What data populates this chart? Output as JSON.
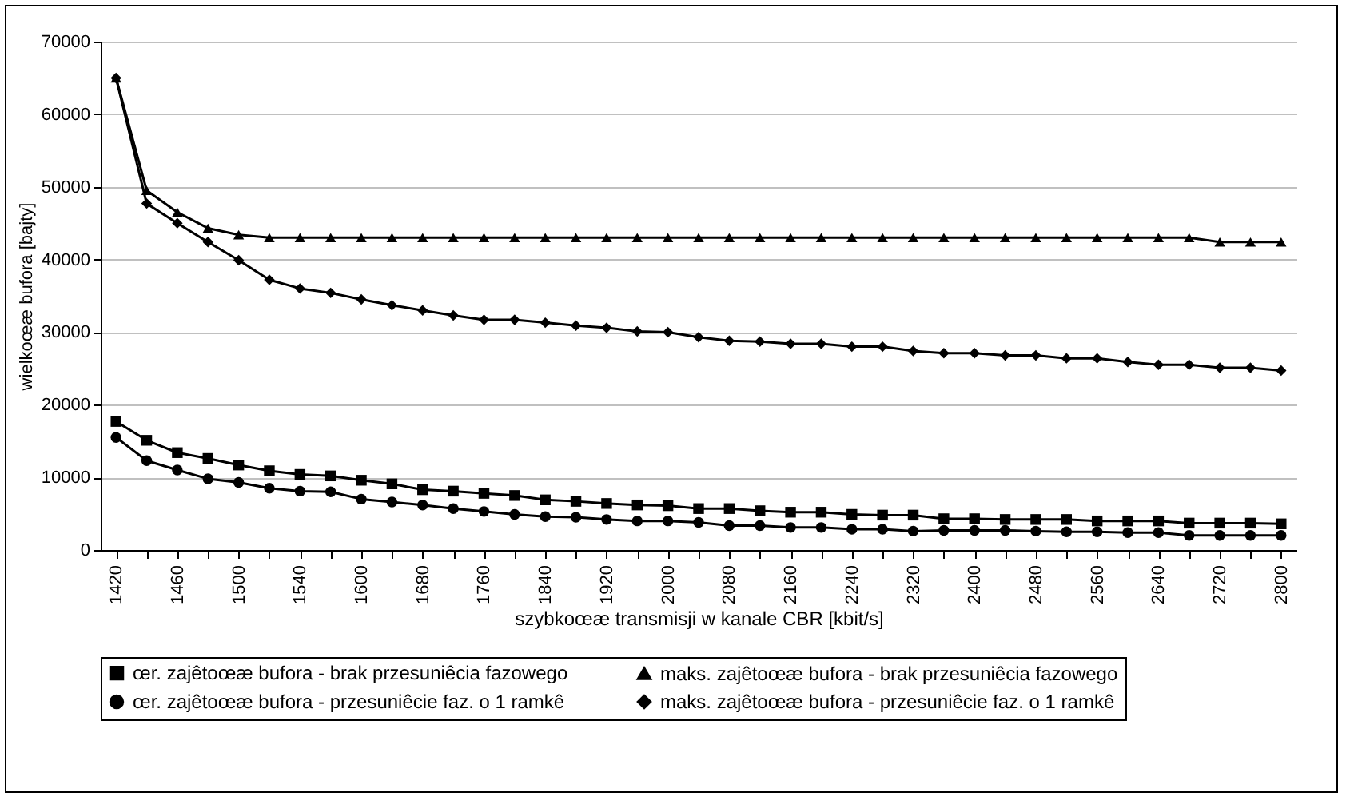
{
  "chart_data": {
    "type": "line",
    "xlabel": "szybkoœæ transmisji w kanale CBR [kbit/s]",
    "ylabel": "wielkoœæ bufora [bajty]",
    "categories": [
      "1420",
      null,
      "1460",
      null,
      "1500",
      null,
      "1540",
      null,
      "1600",
      null,
      "1680",
      null,
      "1760",
      null,
      "1840",
      null,
      "1920",
      null,
      "2000",
      null,
      "2080",
      null,
      "2160",
      null,
      "2240",
      null,
      "2320",
      null,
      "2400",
      null,
      "2480",
      null,
      "2560",
      null,
      "2640",
      null,
      "2720",
      null,
      "2800"
    ],
    "ylim": [
      0,
      70000
    ],
    "yticks": [
      0,
      10000,
      20000,
      30000,
      40000,
      50000,
      60000,
      70000
    ],
    "grid": "y",
    "legend": "bottom",
    "line_style": "solid",
    "series": [
      {
        "name": "œr. zajêtoœæ bufora - brak przesuniêcia fazowego",
        "color": "#000000",
        "marker": "square",
        "values": [
          17700,
          15100,
          13400,
          12600,
          11700,
          10900,
          10400,
          10200,
          9600,
          9100,
          8300,
          8100,
          7800,
          7500,
          6900,
          6700,
          6400,
          6200,
          6100,
          5700,
          5700,
          5400,
          5200,
          5200,
          4900,
          4800,
          4800,
          4300,
          4300,
          4200,
          4200,
          4200,
          4000,
          4000,
          4000,
          3700,
          3700,
          3700,
          3600
        ]
      },
      {
        "name": "maks. zajêtoœæ bufora - brak przesuniêcia fazowego",
        "color": "#000000",
        "marker": "triangle",
        "values": [
          65000,
          49500,
          46500,
          44300,
          43400,
          43000,
          43000,
          43000,
          43000,
          43000,
          43000,
          43000,
          43000,
          43000,
          43000,
          43000,
          43000,
          43000,
          43000,
          43000,
          43000,
          43000,
          43000,
          43000,
          43000,
          43000,
          43000,
          43000,
          43000,
          43000,
          43000,
          43000,
          43000,
          43000,
          43000,
          43000,
          42400,
          42400,
          42400
        ]
      },
      {
        "name": "œr. zajêtoœæ bufora - przesuniêcie faz. o 1 ramkê",
        "color": "#000000",
        "marker": "circle",
        "values": [
          15500,
          12300,
          11000,
          9800,
          9300,
          8500,
          8100,
          8000,
          7000,
          6600,
          6200,
          5700,
          5300,
          4900,
          4600,
          4500,
          4200,
          4000,
          4000,
          3800,
          3350,
          3350,
          3100,
          3100,
          2850,
          2850,
          2600,
          2700,
          2700,
          2700,
          2600,
          2500,
          2500,
          2400,
          2400,
          2000,
          2000,
          2000,
          2000
        ]
      },
      {
        "name": "maks. zajêtoœæ bufora - przesuniêcie faz. o 1 ramkê",
        "color": "#000000",
        "marker": "diamond",
        "values": [
          65000,
          47700,
          45000,
          42400,
          39900,
          37200,
          36000,
          35400,
          34500,
          33700,
          33000,
          32300,
          31700,
          31700,
          31300,
          30900,
          30600,
          30100,
          30000,
          29300,
          28800,
          28700,
          28400,
          28400,
          28000,
          28000,
          27400,
          27100,
          27100,
          26800,
          26800,
          26400,
          26400,
          25900,
          25500,
          25500,
          25100,
          25100,
          24700
        ]
      }
    ]
  }
}
